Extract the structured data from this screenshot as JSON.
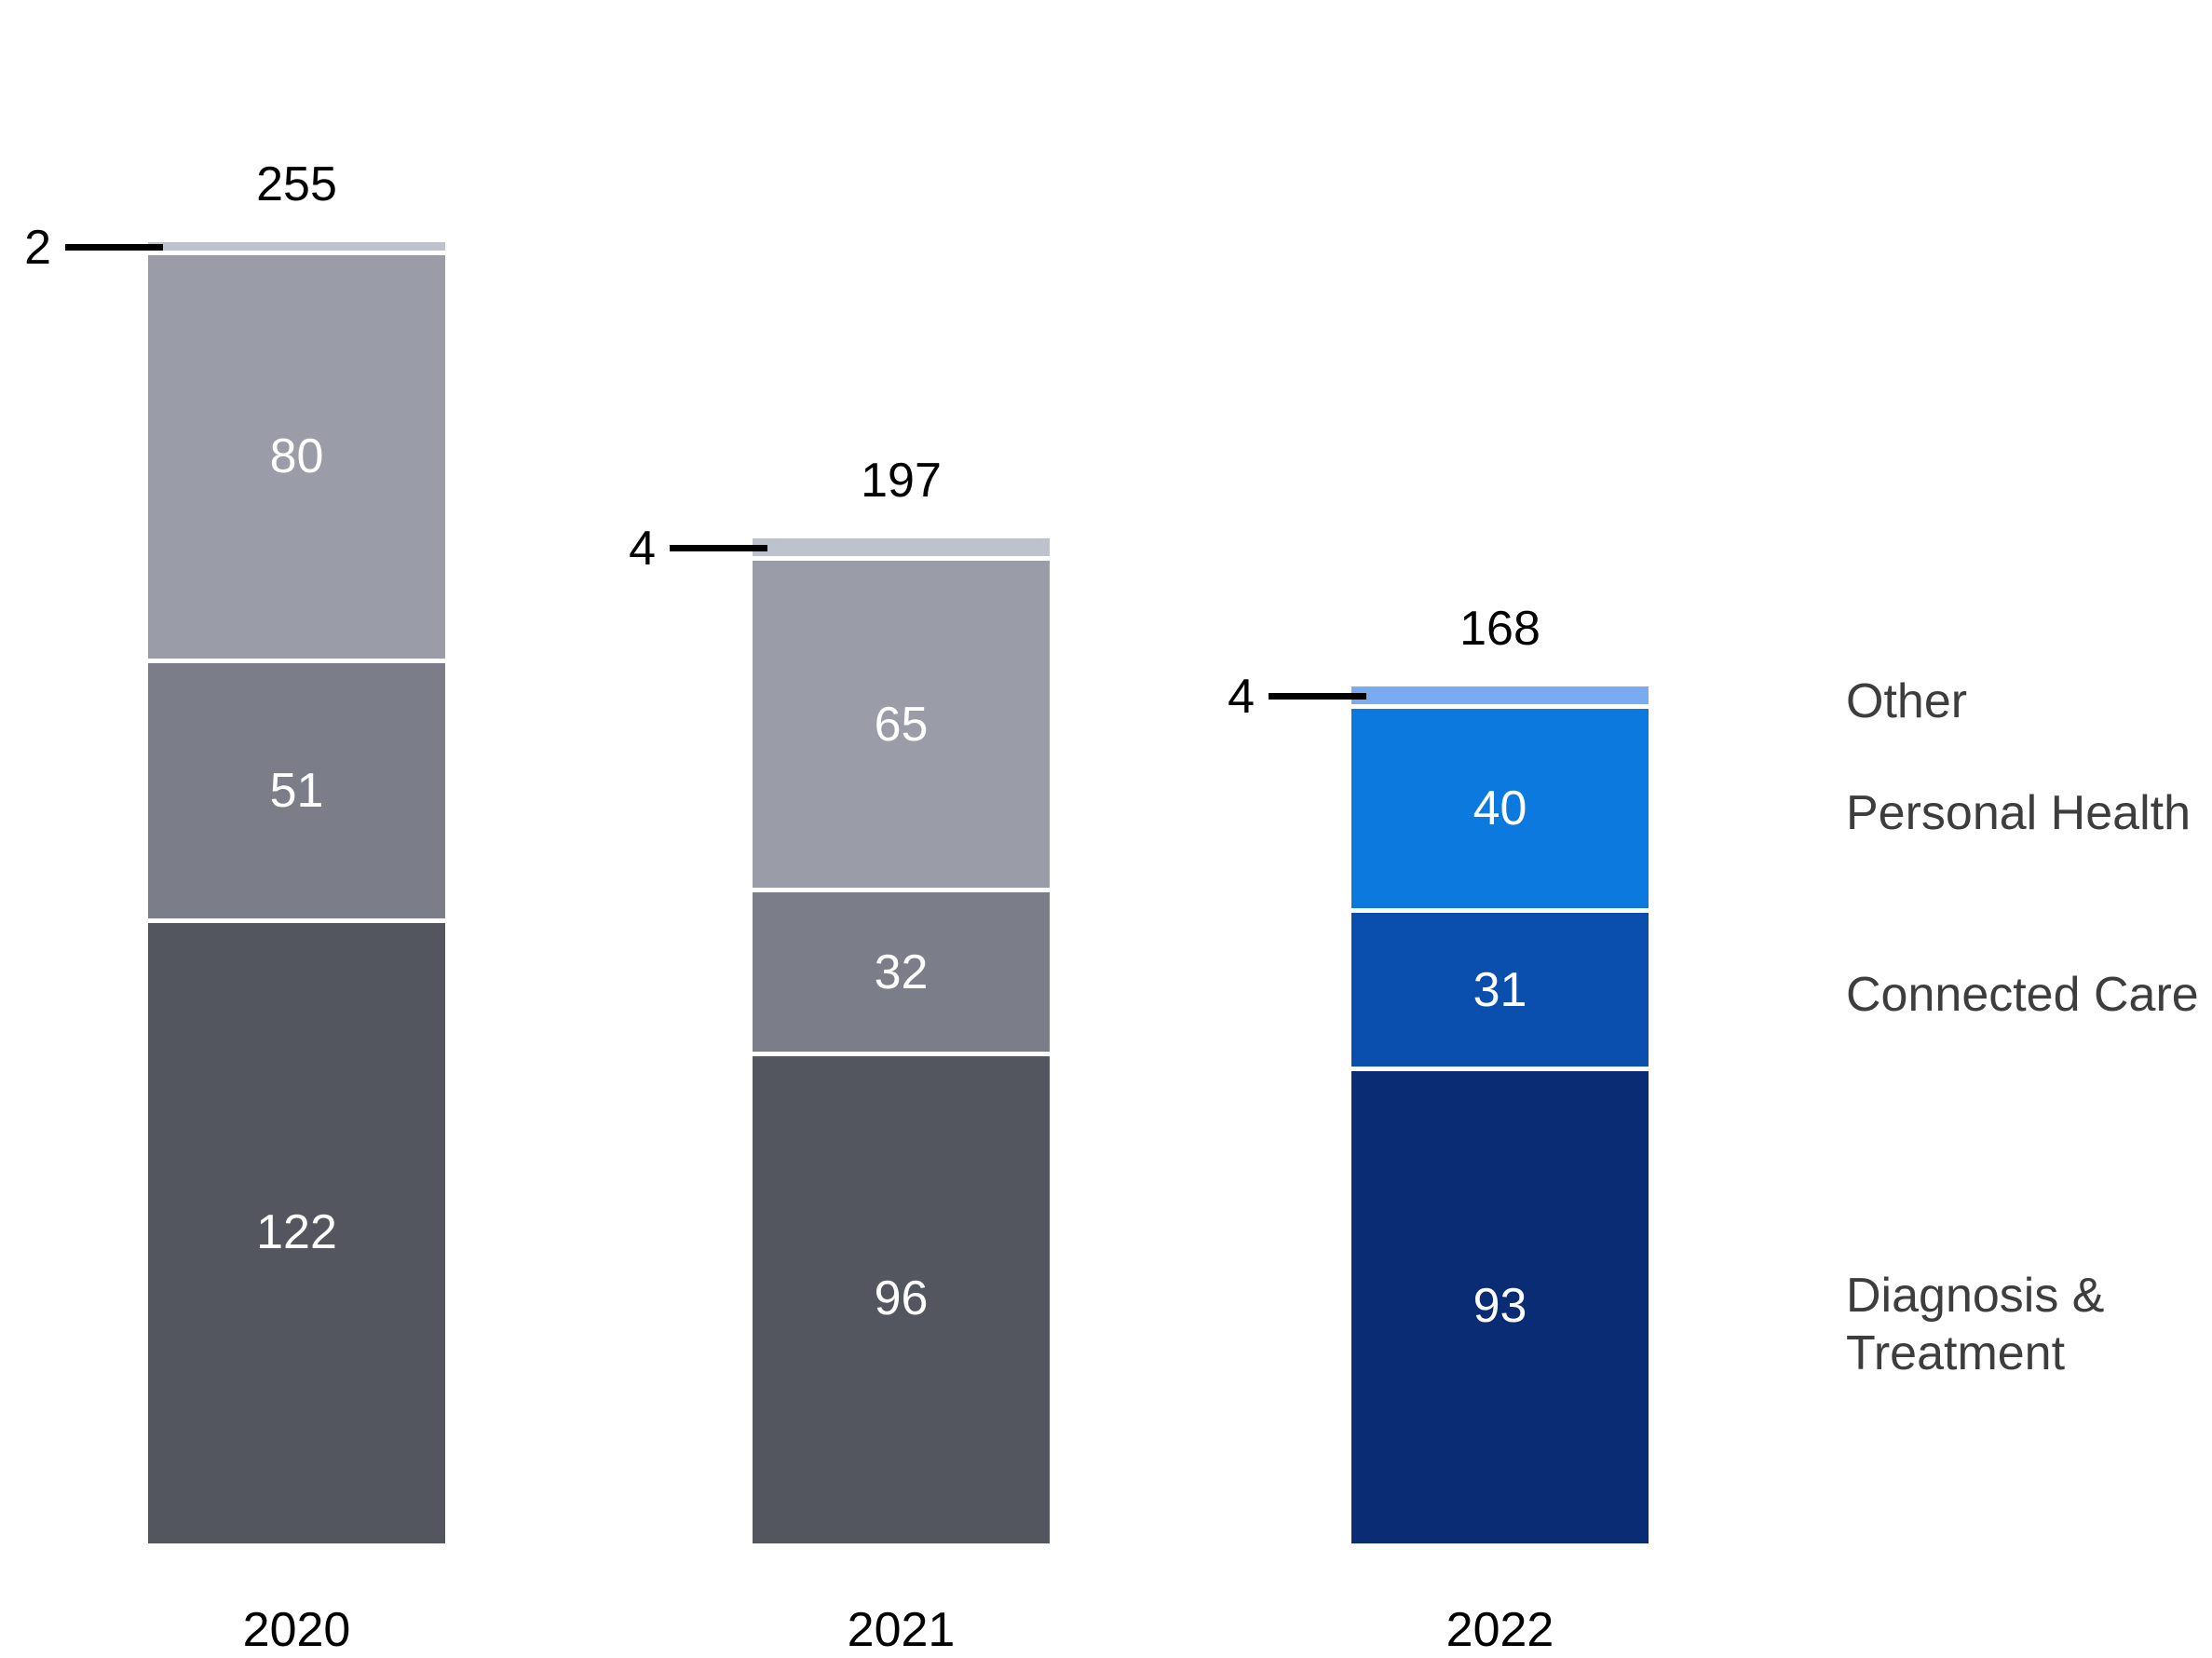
{
  "chart_data": {
    "type": "bar",
    "subtype": "stacked-column",
    "categories": [
      "2020",
      "2021",
      "2022"
    ],
    "totals": [
      255,
      197,
      168
    ],
    "series": [
      {
        "name": "Diagnosis & Treatment",
        "values": [
          122,
          96,
          93
        ]
      },
      {
        "name": "Connected Care",
        "values": [
          51,
          32,
          31
        ]
      },
      {
        "name": "Personal Health",
        "values": [
          80,
          65,
          40
        ]
      },
      {
        "name": "Other",
        "values": [
          2,
          4,
          4
        ]
      }
    ],
    "legend": [
      "Other",
      "Personal Health",
      "Connected Care",
      "Diagnosis & Treatment"
    ],
    "legend_position": "right",
    "grid": false,
    "axes_shown": false,
    "value_labels_inside_segments": true,
    "other_values_shown_as_callouts": [
      2,
      4,
      4
    ],
    "colors": {
      "year_grays": {
        "Diagnosis & Treatment": "#53565f",
        "Connected Care": "#7b7d89",
        "Personal Health": "#9a9ca8",
        "Other": "#bec2cc"
      },
      "year_blues": {
        "Diagnosis & Treatment": "#0a2c74",
        "Connected Care": "#0a4fae",
        "Personal Health": "#0b79de",
        "Other": "#7aabf0"
      },
      "segment_label_text": "#ffffff",
      "axis_label_text": "#000000",
      "legend_text": "#3d3d3d",
      "callout_line": "#000000",
      "background": "#ffffff"
    }
  }
}
